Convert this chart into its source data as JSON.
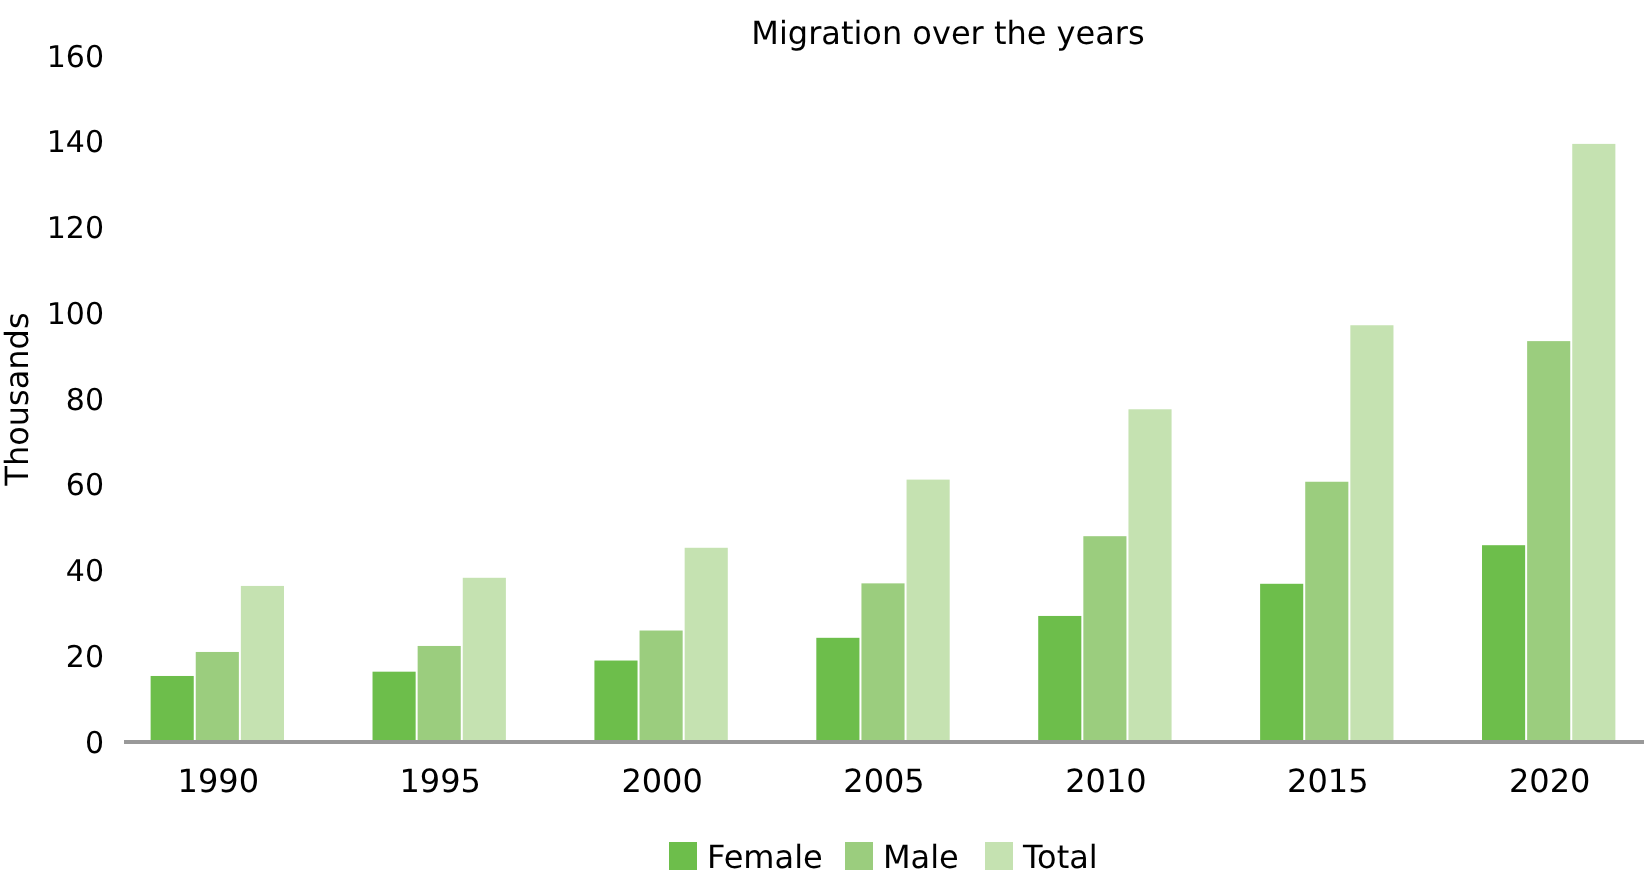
{
  "chart_data": {
    "type": "bar",
    "title": "Migration over the years",
    "ylabel": "Thousands",
    "categories": [
      "1990",
      "1995",
      "2000",
      "2005",
      "2010",
      "2015",
      "2020"
    ],
    "series": [
      {
        "name": "Female",
        "color": "#6dbe4b",
        "values": [
          15.4,
          16.4,
          19,
          24.3,
          29.4,
          36.9,
          45.9
        ]
      },
      {
        "name": "Male",
        "color": "#9bcd7e",
        "values": [
          21,
          22.4,
          26,
          37,
          48,
          60.7,
          93.5
        ]
      },
      {
        "name": "Total",
        "color": "#c5e2b1",
        "values": [
          36.4,
          38.3,
          45.3,
          61.2,
          77.6,
          97.2,
          139.5
        ]
      }
    ],
    "ylim": [
      0,
      160
    ],
    "yticks": [
      0,
      20,
      40,
      60,
      80,
      100,
      120,
      140,
      160
    ],
    "grid": false,
    "legend": "bottom"
  }
}
